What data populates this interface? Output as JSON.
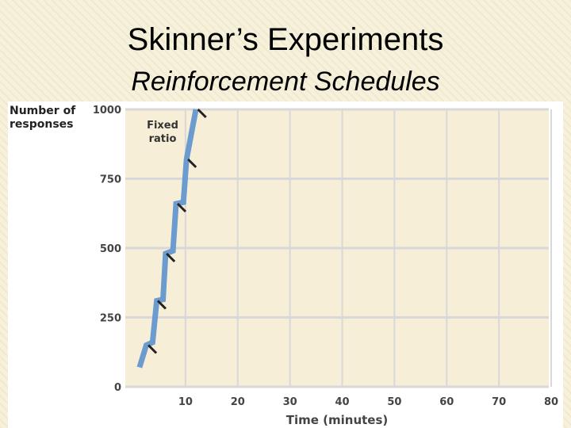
{
  "slide": {
    "title": "Skinner’s Experiments",
    "subtitle": "Reinforcement Schedules"
  },
  "chart_data": {
    "type": "line",
    "xlabel": "Time (minutes)",
    "ylabel": "Number of responses",
    "xlim": [
      0,
      80
    ],
    "ylim": [
      0,
      1000
    ],
    "xticks": [
      10,
      20,
      30,
      40,
      50,
      60,
      70,
      80
    ],
    "yticks": [
      0,
      250,
      500,
      750,
      1000
    ],
    "grid": true,
    "colors": {
      "series": "#6b9bcf",
      "marker": "#222222",
      "plot_bg": "#f7eed8",
      "grid": "#d8d8d8"
    },
    "series": [
      {
        "name": "Fixed ratio",
        "x": [
          1.2,
          2.5,
          3.7,
          4.5,
          5.7,
          6.2,
          7.6,
          8.2,
          9.6,
          10.2,
          12
        ],
        "y": [
          70,
          150,
          160,
          310,
          315,
          480,
          490,
          660,
          665,
          820,
          1000
        ]
      }
    ],
    "reinforcement_markers": [
      {
        "x": 2.9,
        "y": 150
      },
      {
        "x": 4.7,
        "y": 310
      },
      {
        "x": 6.4,
        "y": 480
      },
      {
        "x": 8.5,
        "y": 660
      },
      {
        "x": 10.5,
        "y": 820
      },
      {
        "x": 12.4,
        "y": 1000
      }
    ]
  }
}
